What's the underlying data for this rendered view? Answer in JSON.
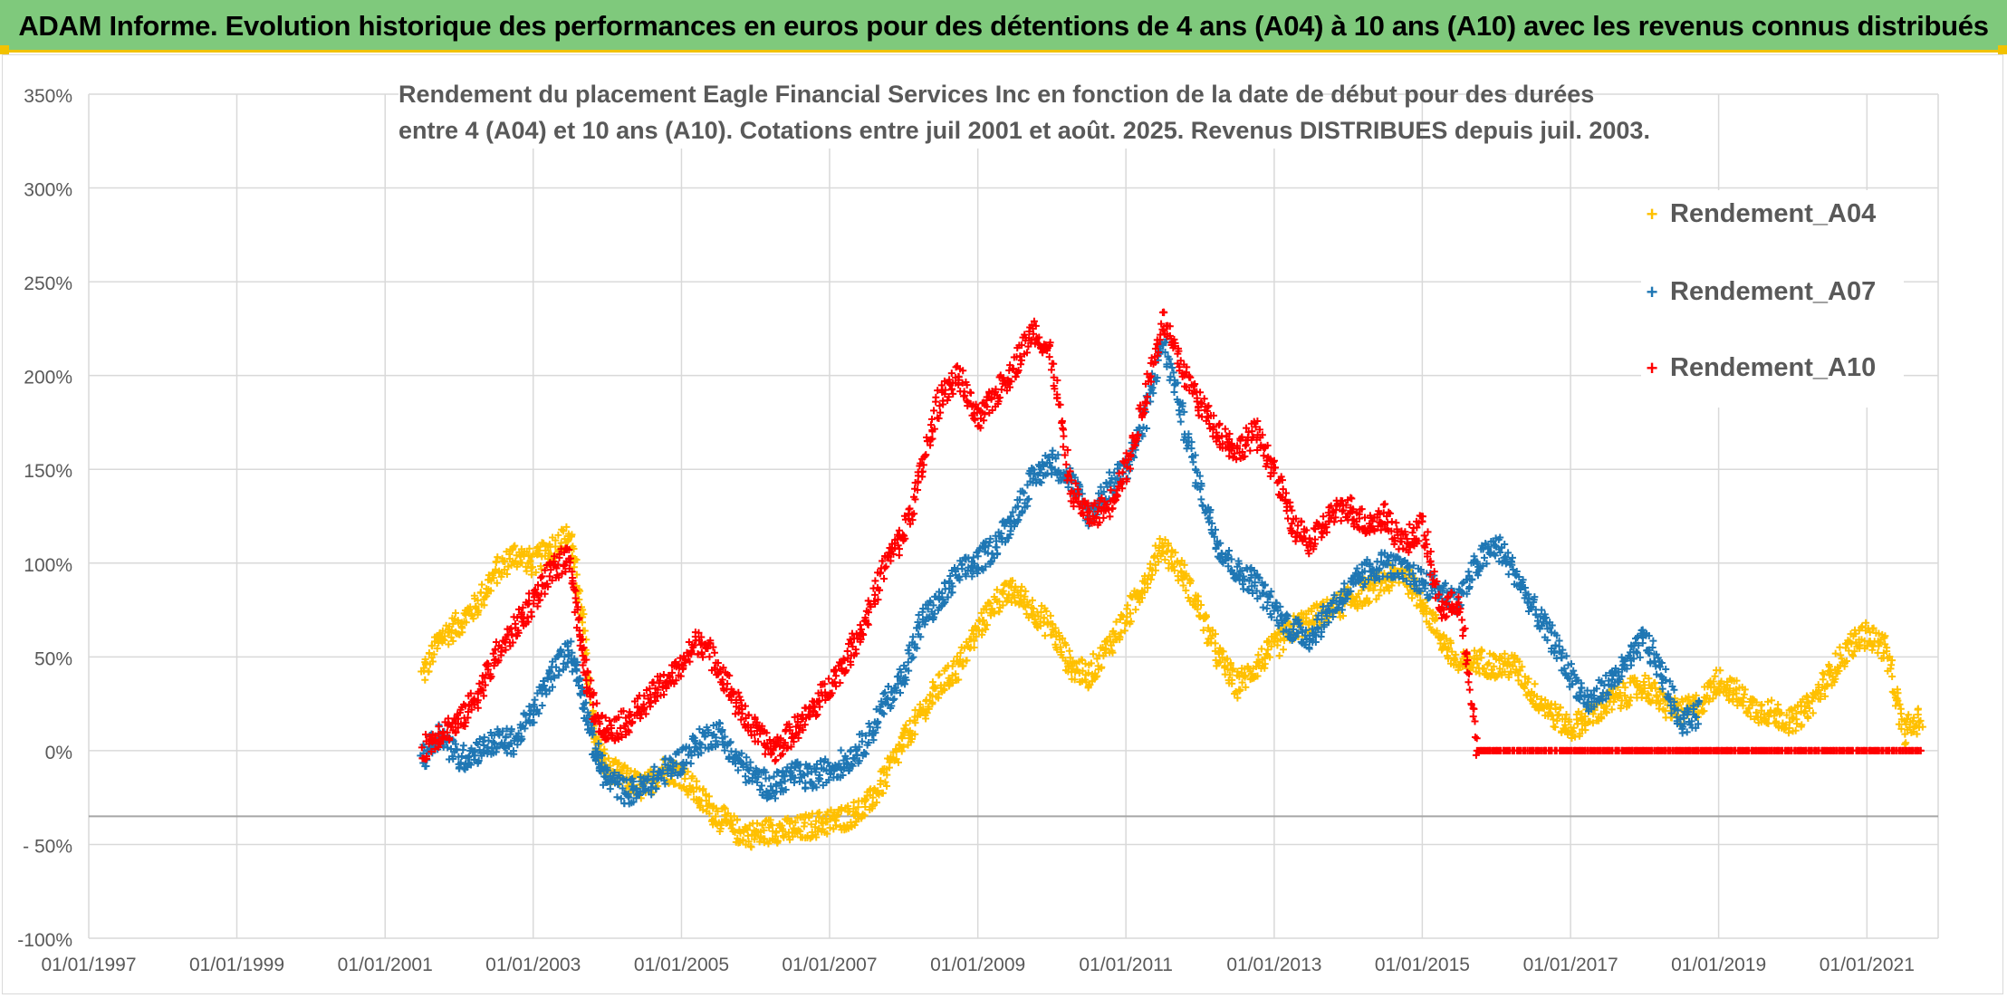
{
  "header": {
    "title": "ADAM Informe. Evolution historique des performances en euros pour des détentions de 4 ans (A04) à 10 ans (A10) avec les revenus connus distribués",
    "background": "#7fc97c",
    "accent": "#f2c200"
  },
  "chart_data": {
    "type": "scatter",
    "title_line1": "Rendement du placement Eagle Financial Services Inc en fonction de la date de début pour des durées",
    "title_line2": "entre 4 (A04) et 10 ans (A10). Cotations entre juil 2001 et août. 2025. Revenus DISTRIBUES depuis juil. 2003.",
    "xlabel": "",
    "ylabel": "",
    "x_range": [
      "01/01/1997",
      "01/01/2022"
    ],
    "y_range": [
      -100,
      350
    ],
    "y_ticks": [
      "350%",
      "300%",
      "250%",
      "200%",
      "150%",
      "100%",
      "50%",
      "0%",
      "- 50%",
      "-100%"
    ],
    "y_tick_values": [
      350,
      300,
      250,
      200,
      150,
      100,
      50,
      0,
      -50,
      -100
    ],
    "x_ticks": [
      "01/01/1997",
      "01/01/1999",
      "01/01/2001",
      "01/01/2003",
      "01/01/2005",
      "01/01/2007",
      "01/01/2009",
      "01/01/2011",
      "01/01/2013",
      "01/01/2015",
      "01/01/2017",
      "01/01/2019",
      "01/01/2021"
    ],
    "grid": true,
    "legend_position": "top-right",
    "marker": "+",
    "series": [
      {
        "name": "Rendement_A04",
        "color": "#ffc000",
        "points": [
          [
            "2001-07-01",
            40
          ],
          [
            "2001-10-01",
            60
          ],
          [
            "2002-01-01",
            68
          ],
          [
            "2002-04-01",
            78
          ],
          [
            "2002-07-01",
            95
          ],
          [
            "2002-10-01",
            105
          ],
          [
            "2003-01-01",
            100
          ],
          [
            "2003-04-01",
            108
          ],
          [
            "2003-07-01",
            115
          ],
          [
            "2003-09-01",
            70
          ],
          [
            "2003-11-01",
            5
          ],
          [
            "2004-01-01",
            -10
          ],
          [
            "2004-04-01",
            -15
          ],
          [
            "2004-07-01",
            -20
          ],
          [
            "2004-10-01",
            -10
          ],
          [
            "2005-01-01",
            -12
          ],
          [
            "2005-04-01",
            -25
          ],
          [
            "2005-07-01",
            -35
          ],
          [
            "2005-10-01",
            -43
          ],
          [
            "2006-01-01",
            -45
          ],
          [
            "2006-04-01",
            -42
          ],
          [
            "2006-07-01",
            -43
          ],
          [
            "2006-10-01",
            -40
          ],
          [
            "2007-01-01",
            -38
          ],
          [
            "2007-04-01",
            -35
          ],
          [
            "2007-07-01",
            -30
          ],
          [
            "2007-10-01",
            -15
          ],
          [
            "2008-01-01",
            5
          ],
          [
            "2008-04-01",
            20
          ],
          [
            "2008-07-01",
            35
          ],
          [
            "2008-10-01",
            45
          ],
          [
            "2009-01-01",
            65
          ],
          [
            "2009-04-01",
            80
          ],
          [
            "2009-07-01",
            85
          ],
          [
            "2009-10-01",
            75
          ],
          [
            "2010-01-01",
            65
          ],
          [
            "2010-04-01",
            45
          ],
          [
            "2010-07-01",
            40
          ],
          [
            "2010-10-01",
            55
          ],
          [
            "2011-01-01",
            70
          ],
          [
            "2011-04-01",
            90
          ],
          [
            "2011-07-01",
            110
          ],
          [
            "2011-10-01",
            95
          ],
          [
            "2012-01-01",
            75
          ],
          [
            "2012-04-01",
            50
          ],
          [
            "2012-07-01",
            35
          ],
          [
            "2012-10-01",
            45
          ],
          [
            "2013-01-01",
            55
          ],
          [
            "2013-04-01",
            65
          ],
          [
            "2013-07-01",
            70
          ],
          [
            "2013-10-01",
            75
          ],
          [
            "2014-01-01",
            80
          ],
          [
            "2014-04-01",
            85
          ],
          [
            "2014-07-01",
            90
          ],
          [
            "2014-10-01",
            95
          ],
          [
            "2015-01-01",
            80
          ],
          [
            "2015-04-01",
            60
          ],
          [
            "2015-07-01",
            45
          ],
          [
            "2015-10-01",
            48
          ],
          [
            "2016-01-01",
            45
          ],
          [
            "2016-04-01",
            45
          ],
          [
            "2016-07-01",
            30
          ],
          [
            "2016-10-01",
            20
          ],
          [
            "2017-01-01",
            12
          ],
          [
            "2017-04-01",
            18
          ],
          [
            "2017-07-01",
            25
          ],
          [
            "2017-10-01",
            30
          ],
          [
            "2018-01-01",
            35
          ],
          [
            "2018-04-01",
            25
          ],
          [
            "2018-07-01",
            20
          ],
          [
            "2018-10-01",
            25
          ],
          [
            "2019-01-01",
            38
          ],
          [
            "2019-04-01",
            30
          ],
          [
            "2019-07-01",
            22
          ],
          [
            "2019-10-01",
            20
          ],
          [
            "2020-01-01",
            15
          ],
          [
            "2020-04-01",
            25
          ],
          [
            "2020-07-01",
            40
          ],
          [
            "2020-10-01",
            55
          ],
          [
            "2021-01-01",
            62
          ],
          [
            "2021-04-01",
            55
          ],
          [
            "2021-07-01",
            10
          ],
          [
            "2021-10-01",
            18
          ]
        ]
      },
      {
        "name": "Rendement_A07",
        "color": "#1f77b4",
        "points": [
          [
            "2001-07-01",
            -5
          ],
          [
            "2001-10-01",
            10
          ],
          [
            "2002-01-01",
            -5
          ],
          [
            "2002-04-01",
            0
          ],
          [
            "2002-07-01",
            5
          ],
          [
            "2002-10-01",
            5
          ],
          [
            "2003-01-01",
            20
          ],
          [
            "2003-04-01",
            40
          ],
          [
            "2003-07-01",
            55
          ],
          [
            "2003-09-01",
            30
          ],
          [
            "2003-11-01",
            0
          ],
          [
            "2004-01-01",
            -15
          ],
          [
            "2004-04-01",
            -22
          ],
          [
            "2004-07-01",
            -20
          ],
          [
            "2004-10-01",
            -12
          ],
          [
            "2005-01-01",
            -5
          ],
          [
            "2005-04-01",
            5
          ],
          [
            "2005-07-01",
            10
          ],
          [
            "2005-10-01",
            -5
          ],
          [
            "2006-01-01",
            -15
          ],
          [
            "2006-04-01",
            -20
          ],
          [
            "2006-07-01",
            -12
          ],
          [
            "2006-10-01",
            -15
          ],
          [
            "2007-01-01",
            -10
          ],
          [
            "2007-04-01",
            -5
          ],
          [
            "2007-07-01",
            5
          ],
          [
            "2007-10-01",
            25
          ],
          [
            "2008-01-01",
            40
          ],
          [
            "2008-04-01",
            70
          ],
          [
            "2008-07-01",
            80
          ],
          [
            "2008-10-01",
            95
          ],
          [
            "2009-01-01",
            100
          ],
          [
            "2009-04-01",
            110
          ],
          [
            "2009-07-01",
            125
          ],
          [
            "2009-10-01",
            145
          ],
          [
            "2010-01-01",
            155
          ],
          [
            "2010-04-01",
            145
          ],
          [
            "2010-07-01",
            125
          ],
          [
            "2010-10-01",
            140
          ],
          [
            "2011-01-01",
            150
          ],
          [
            "2011-04-01",
            175
          ],
          [
            "2011-07-01",
            220
          ],
          [
            "2011-10-01",
            180
          ],
          [
            "2012-01-01",
            140
          ],
          [
            "2012-04-01",
            110
          ],
          [
            "2012-07-01",
            95
          ],
          [
            "2012-10-01",
            90
          ],
          [
            "2013-01-01",
            75
          ],
          [
            "2013-04-01",
            65
          ],
          [
            "2013-07-01",
            60
          ],
          [
            "2013-10-01",
            75
          ],
          [
            "2014-01-01",
            85
          ],
          [
            "2014-04-01",
            95
          ],
          [
            "2014-07-01",
            100
          ],
          [
            "2014-10-01",
            95
          ],
          [
            "2015-01-01",
            90
          ],
          [
            "2015-04-01",
            85
          ],
          [
            "2015-07-01",
            80
          ],
          [
            "2015-10-01",
            100
          ],
          [
            "2016-01-01",
            110
          ],
          [
            "2016-04-01",
            95
          ],
          [
            "2016-07-01",
            75
          ],
          [
            "2016-10-01",
            60
          ],
          [
            "2017-01-01",
            40
          ],
          [
            "2017-04-01",
            25
          ],
          [
            "2017-07-01",
            35
          ],
          [
            "2017-10-01",
            45
          ],
          [
            "2018-01-01",
            60
          ],
          [
            "2018-04-01",
            40
          ],
          [
            "2018-07-01",
            15
          ],
          [
            "2018-10-01",
            20
          ]
        ]
      },
      {
        "name": "Rendement_A10",
        "color": "#ff0000",
        "points": [
          [
            "2001-07-01",
            0
          ],
          [
            "2001-10-01",
            10
          ],
          [
            "2002-01-01",
            15
          ],
          [
            "2002-04-01",
            30
          ],
          [
            "2002-07-01",
            50
          ],
          [
            "2002-10-01",
            65
          ],
          [
            "2003-01-01",
            80
          ],
          [
            "2003-04-01",
            95
          ],
          [
            "2003-07-01",
            105
          ],
          [
            "2003-09-01",
            50
          ],
          [
            "2003-11-01",
            20
          ],
          [
            "2004-01-01",
            10
          ],
          [
            "2004-04-01",
            15
          ],
          [
            "2004-07-01",
            25
          ],
          [
            "2004-10-01",
            35
          ],
          [
            "2005-01-01",
            45
          ],
          [
            "2005-04-01",
            60
          ],
          [
            "2005-07-01",
            45
          ],
          [
            "2005-10-01",
            25
          ],
          [
            "2006-01-01",
            10
          ],
          [
            "2006-04-01",
            0
          ],
          [
            "2006-07-01",
            10
          ],
          [
            "2006-10-01",
            20
          ],
          [
            "2007-01-01",
            35
          ],
          [
            "2007-04-01",
            50
          ],
          [
            "2007-07-01",
            70
          ],
          [
            "2007-10-01",
            100
          ],
          [
            "2008-01-01",
            115
          ],
          [
            "2008-04-01",
            150
          ],
          [
            "2008-07-01",
            190
          ],
          [
            "2008-10-01",
            200
          ],
          [
            "2009-01-01",
            175
          ],
          [
            "2009-04-01",
            190
          ],
          [
            "2009-07-01",
            205
          ],
          [
            "2009-10-01",
            225
          ],
          [
            "2010-01-01",
            210
          ],
          [
            "2010-04-01",
            140
          ],
          [
            "2010-07-01",
            125
          ],
          [
            "2010-10-01",
            130
          ],
          [
            "2011-01-01",
            150
          ],
          [
            "2011-04-01",
            185
          ],
          [
            "2011-07-01",
            230
          ],
          [
            "2011-10-01",
            205
          ],
          [
            "2012-01-01",
            185
          ],
          [
            "2012-04-01",
            170
          ],
          [
            "2012-07-01",
            160
          ],
          [
            "2012-10-01",
            170
          ],
          [
            "2013-01-01",
            150
          ],
          [
            "2013-04-01",
            120
          ],
          [
            "2013-07-01",
            110
          ],
          [
            "2013-10-01",
            125
          ],
          [
            "2014-01-01",
            130
          ],
          [
            "2014-04-01",
            120
          ],
          [
            "2014-07-01",
            125
          ],
          [
            "2014-10-01",
            110
          ],
          [
            "2015-01-01",
            120
          ],
          [
            "2015-04-01",
            75
          ],
          [
            "2015-07-01",
            80
          ],
          [
            "2015-10-01",
            0
          ],
          [
            "2016-01-01",
            0
          ],
          [
            "2016-04-01",
            0
          ],
          [
            "2016-07-01",
            0
          ],
          [
            "2016-10-01",
            0
          ],
          [
            "2017-01-01",
            0
          ],
          [
            "2017-04-01",
            0
          ],
          [
            "2017-07-01",
            0
          ],
          [
            "2017-10-01",
            0
          ],
          [
            "2018-01-01",
            0
          ],
          [
            "2018-04-01",
            0
          ],
          [
            "2018-07-01",
            0
          ],
          [
            "2018-10-01",
            0
          ],
          [
            "2019-01-01",
            0
          ],
          [
            "2019-04-01",
            0
          ],
          [
            "2019-07-01",
            0
          ],
          [
            "2019-10-01",
            0
          ],
          [
            "2020-01-01",
            0
          ],
          [
            "2020-04-01",
            0
          ],
          [
            "2020-07-01",
            0
          ],
          [
            "2020-10-01",
            0
          ],
          [
            "2021-01-01",
            0
          ],
          [
            "2021-04-01",
            0
          ],
          [
            "2021-07-01",
            0
          ],
          [
            "2021-10-01",
            0
          ]
        ]
      }
    ]
  }
}
